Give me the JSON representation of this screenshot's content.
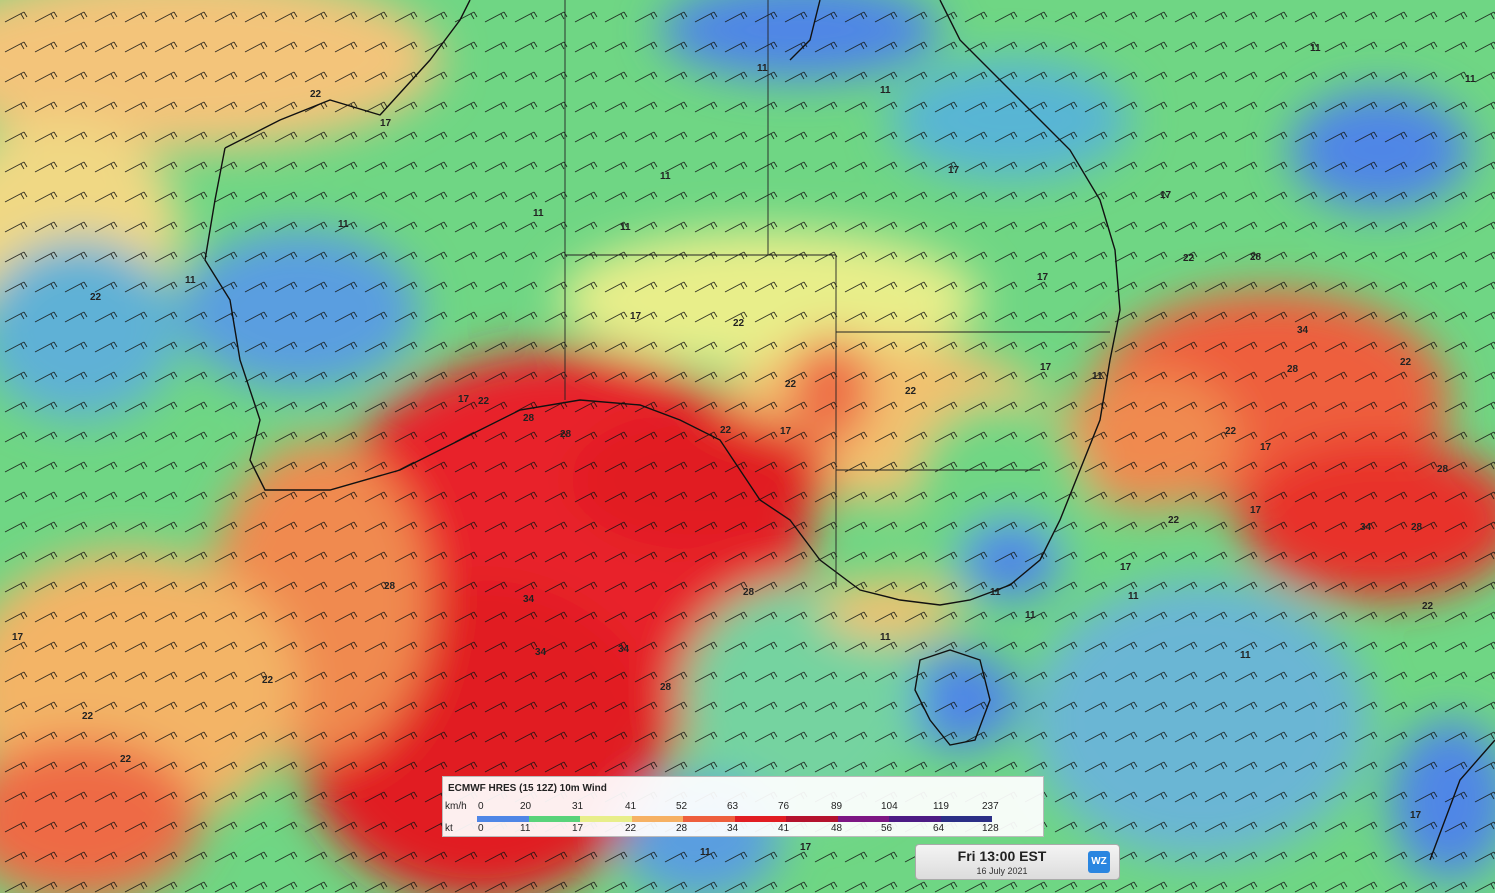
{
  "legend": {
    "title": "ECMWF HRES (15 12Z) 10m Wind",
    "kmh_label": "km/h",
    "kt_label": "kt",
    "kmh_ticks": [
      "0",
      "20",
      "31",
      "41",
      "52",
      "63",
      "76",
      "89",
      "104",
      "119",
      "237"
    ],
    "kt_ticks": [
      "0",
      "11",
      "17",
      "22",
      "28",
      "34",
      "41",
      "48",
      "56",
      "64",
      "128"
    ],
    "colors": [
      "#4f86e6",
      "#58d37a",
      "#e8ee8a",
      "#f6b164",
      "#ee5f3e",
      "#e11d23",
      "#b4122d",
      "#7d1683",
      "#4c1b84",
      "#2b2f86"
    ]
  },
  "time": {
    "main": "Fri 13:00 EST",
    "date": "16 July 2021",
    "logo": "WZ"
  },
  "contour_labels": [
    {
      "text": "22"
    },
    {
      "text": "17"
    },
    {
      "text": "11"
    },
    {
      "text": "11"
    },
    {
      "text": "11"
    },
    {
      "text": "11"
    },
    {
      "text": "17"
    },
    {
      "text": "11"
    },
    {
      "text": "11"
    },
    {
      "text": "11"
    },
    {
      "text": "17"
    },
    {
      "text": "11"
    },
    {
      "text": "11"
    },
    {
      "text": "22"
    },
    {
      "text": "17"
    },
    {
      "text": "22"
    },
    {
      "text": "28"
    },
    {
      "text": "34"
    },
    {
      "text": "22"
    },
    {
      "text": "17"
    },
    {
      "text": "22"
    },
    {
      "text": "22"
    },
    {
      "text": "22"
    },
    {
      "text": "17"
    },
    {
      "text": "17"
    },
    {
      "text": "11"
    },
    {
      "text": "22"
    },
    {
      "text": "17"
    },
    {
      "text": "28"
    },
    {
      "text": "22"
    },
    {
      "text": "28"
    },
    {
      "text": "17"
    },
    {
      "text": "28"
    },
    {
      "text": "22"
    },
    {
      "text": "28"
    },
    {
      "text": "28"
    },
    {
      "text": "17"
    },
    {
      "text": "22"
    },
    {
      "text": "34"
    },
    {
      "text": "34"
    },
    {
      "text": "34"
    },
    {
      "text": "34"
    },
    {
      "text": "28"
    },
    {
      "text": "28"
    },
    {
      "text": "22"
    },
    {
      "text": "22"
    },
    {
      "text": "22"
    },
    {
      "text": "28"
    },
    {
      "text": "17"
    },
    {
      "text": "11"
    },
    {
      "text": "11"
    },
    {
      "text": "11"
    },
    {
      "text": "17"
    },
    {
      "text": "22"
    },
    {
      "text": "11"
    },
    {
      "text": "17"
    },
    {
      "text": "11"
    },
    {
      "text": "11"
    },
    {
      "text": "17"
    }
  ]
}
